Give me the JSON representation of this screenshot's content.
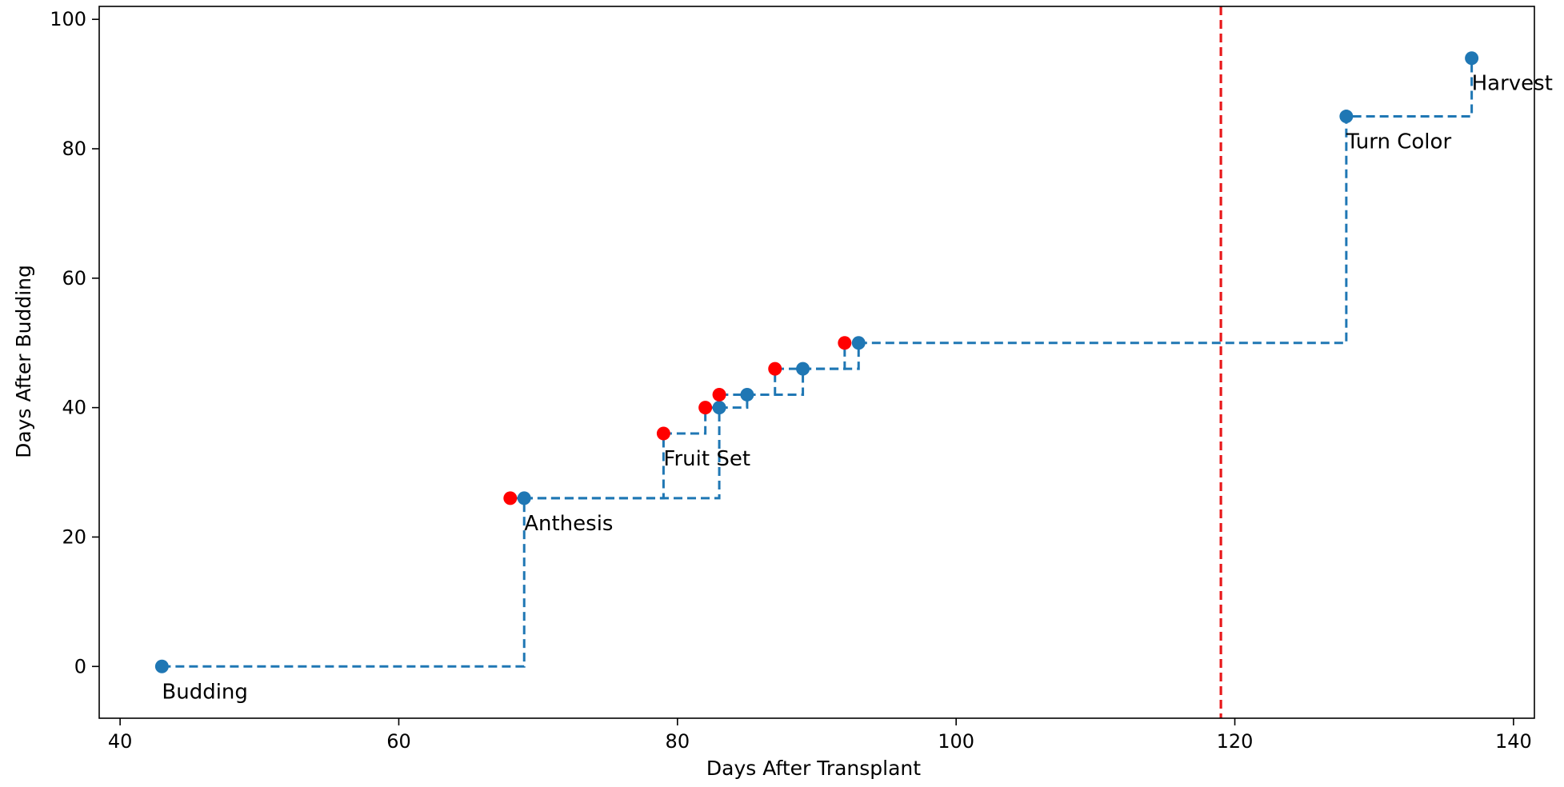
{
  "chart_data": {
    "type": "line",
    "title": "",
    "xlabel": "Days After Transplant",
    "ylabel": "Days After Budding",
    "xlim": [
      38.5,
      141.5
    ],
    "ylim": [
      -8,
      102
    ],
    "xticks": [
      40,
      60,
      80,
      100,
      120,
      140
    ],
    "yticks": [
      0,
      20,
      40,
      60,
      80,
      100
    ],
    "grid": false,
    "legend": "none",
    "colors": {
      "step_line": "#1f77b4",
      "stage_points": "#1f77b4",
      "red_points": "#ff0000",
      "reference_line": "#e8191b"
    },
    "series": [
      {
        "style": "step-post dashed",
        "points": [
          {
            "x": 43,
            "y": 0
          },
          {
            "x": 69,
            "y": 26
          },
          {
            "x": 83,
            "y": 40
          },
          {
            "x": 85,
            "y": 42
          },
          {
            "x": 89,
            "y": 46
          },
          {
            "x": 93,
            "y": 50
          },
          {
            "x": 128,
            "y": 85
          },
          {
            "x": 137,
            "y": 94
          }
        ]
      },
      {
        "style": "step-post dashed",
        "points": [
          {
            "x": 68,
            "y": 26
          },
          {
            "x": 79,
            "y": 36
          },
          {
            "x": 82,
            "y": 40
          },
          {
            "x": 83,
            "y": 42
          },
          {
            "x": 87,
            "y": 46
          },
          {
            "x": 92,
            "y": 50
          }
        ]
      }
    ],
    "reference_line": {
      "x": 119
    },
    "annotations": [
      {
        "text": "Budding",
        "x": 43,
        "y": 0
      },
      {
        "text": "Anthesis",
        "x": 69,
        "y": 26
      },
      {
        "text": "Fruit Set",
        "x": 79,
        "y": 36
      },
      {
        "text": "Turn Color",
        "x": 128,
        "y": 85
      },
      {
        "text": "Harvest",
        "x": 137,
        "y": 94
      }
    ]
  }
}
